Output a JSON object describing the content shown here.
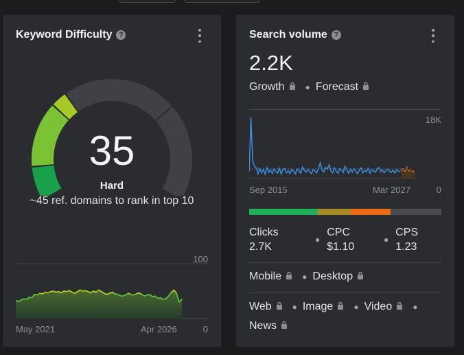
{
  "keyword_difficulty": {
    "title": "Keyword Difficulty",
    "help_icon": "?",
    "value": "35",
    "value_number": 35,
    "difficulty_label": "Hard",
    "note": "~45 ref. domains to rank in top 10",
    "trend": {
      "y_max_label": "100",
      "y_min_label": "0",
      "x_start": "May 2021",
      "x_end": "Apr 2026",
      "values": [
        33,
        31,
        34,
        36,
        35,
        39,
        38,
        44,
        43,
        46,
        45,
        48,
        47,
        49,
        50,
        48,
        49,
        47,
        50,
        49,
        51,
        48,
        46,
        49,
        52,
        50,
        51,
        49,
        47,
        50,
        48,
        52,
        49,
        46,
        44,
        46,
        48,
        45,
        44,
        42,
        41,
        43,
        46,
        44,
        43,
        45,
        47,
        44,
        41,
        43,
        44,
        40,
        41,
        37,
        38,
        35,
        36,
        41,
        47,
        52,
        46,
        30,
        35
      ]
    }
  },
  "search_volume": {
    "title": "Search volume",
    "help_icon": "?",
    "value": "2.2K",
    "growth_label": "Growth",
    "forecast_label": "Forecast",
    "chart": {
      "y_max_label": "18K",
      "y_min_label": "0",
      "x_start": "Sep 2015",
      "x_end": "Mar 2027",
      "values": [
        1.8,
        16,
        4.5,
        3.2,
        2.8,
        1.2,
        2.6,
        1.5,
        2.4,
        1.1,
        2.9,
        1.6,
        2.2,
        1.3,
        2.5,
        1.8,
        1.4,
        2.7,
        1.2,
        2.3,
        2.6,
        1.5,
        2.0,
        1.3,
        2.4,
        1.9,
        1.2,
        2.5,
        2.1,
        1.4,
        3.0,
        2.2,
        1.6,
        2.4,
        1.8,
        1.3,
        2.3,
        2.0,
        1.5,
        2.6,
        4.1,
        2.3,
        1.7,
        2.9,
        2.5,
        3.6,
        2.0,
        1.5,
        2.8,
        1.9,
        1.4,
        2.6,
        2.2,
        1.6,
        3.2,
        2.1,
        1.4,
        2.4,
        1.7,
        2.6,
        1.9,
        1.3,
        2.2,
        2.8,
        1.5,
        2.1,
        1.8,
        2.7,
        1.4,
        2.3,
        2.0,
        1.6,
        2.5,
        2.9,
        1.8,
        2.3,
        1.5,
        2.1,
        2.4,
        1.9,
        1.6,
        2.2,
        1.4,
        2.3,
        1.8,
        2.0
      ],
      "forecast_values": [
        2.0,
        2.6,
        1.7,
        3.0,
        1.9,
        2.4,
        1.6,
        2.2
      ]
    },
    "intent_bar": [
      {
        "color": "#1fb15a",
        "fraction": 0.357
      },
      {
        "color": "#a98b25",
        "fraction": 0.171
      },
      {
        "color": "#ef6a14",
        "fraction": 0.207
      },
      {
        "color": "#4a4b50",
        "fraction": 0.265
      }
    ],
    "metrics": [
      {
        "label": "Clicks",
        "value": "2.7K"
      },
      {
        "label": "CPC",
        "value": "$1.10"
      },
      {
        "label": "CPS",
        "value": "1.23"
      }
    ],
    "devices": [
      "Mobile",
      "Desktop"
    ],
    "serp_types": [
      "Web",
      "Image",
      "Video",
      "News"
    ]
  },
  "colors": {
    "card_bg": "#2b2c30",
    "page_bg": "#1c1c1f",
    "gauge_green_dark": "#19a04a",
    "gauge_green_light": "#7bc234",
    "gauge_yellow_green": "#a7c927",
    "gauge_track": "#404145",
    "sv_line": "#3a8fe0",
    "forecast_line": "#e2761b"
  }
}
